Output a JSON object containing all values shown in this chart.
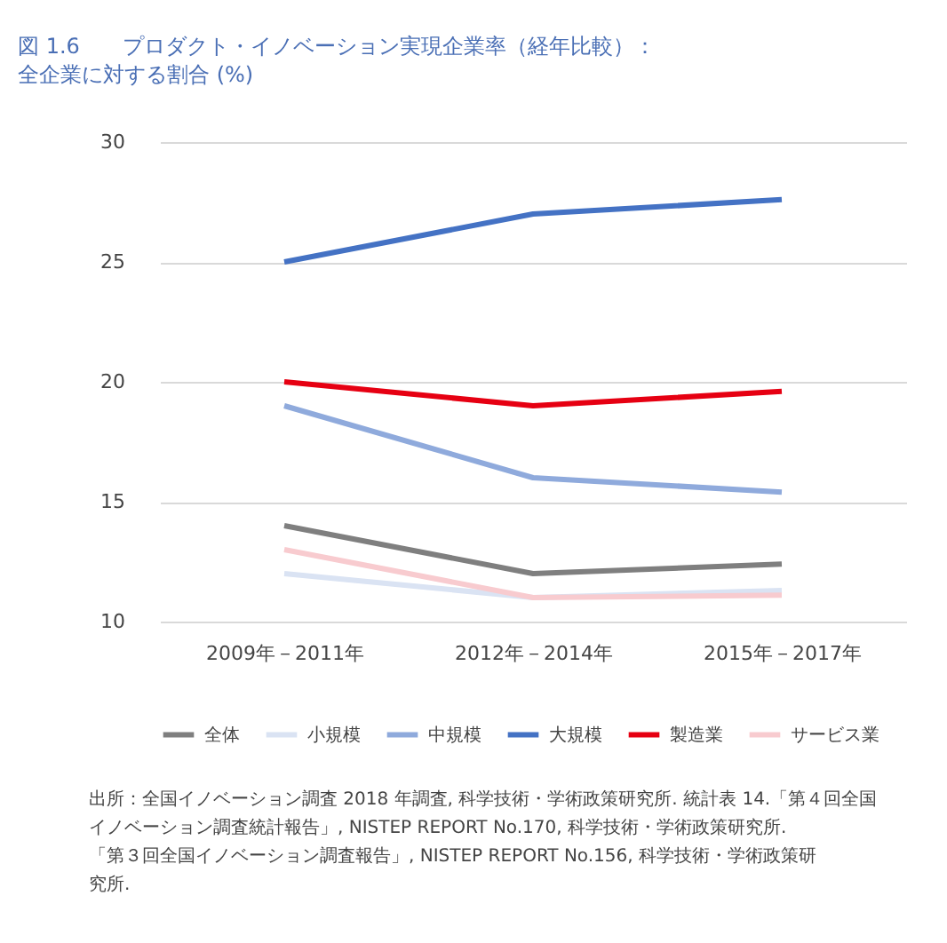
{
  "chart_data": {
    "type": "line",
    "title": "図 1.6　　プロダクト・イノベーション実現企業率（経年比較）：",
    "subtitle": "全企業に対する割合 (%)",
    "categories": [
      "2009年－2011年",
      "2012年－2014年",
      "2015年－2017年"
    ],
    "series": [
      {
        "name": "全体",
        "color": "#7f7f7f",
        "values": [
          14,
          12,
          12.4
        ]
      },
      {
        "name": "小規模",
        "color": "#dae3f3",
        "values": [
          12,
          11,
          11.3
        ]
      },
      {
        "name": "中規模",
        "color": "#8faadc",
        "values": [
          19,
          16,
          15.4
        ]
      },
      {
        "name": "大規模",
        "color": "#4472c4",
        "values": [
          25,
          27,
          27.6
        ]
      },
      {
        "name": "製造業",
        "color": "#e60012",
        "values": [
          20,
          19,
          19.6
        ]
      },
      {
        "name": "サービス業",
        "color": "#f8cbcf",
        "values": [
          13,
          11,
          11.1
        ]
      }
    ],
    "ylim": [
      10,
      30
    ],
    "yticks": [
      10,
      15,
      20,
      25,
      30
    ],
    "grid": "y",
    "legend": "bottom",
    "marker": "none",
    "line_style": "solid",
    "annotations": [
      "出所：全国イノベーション調査 2018 年調査, 科学技術・学術政策研究所. 統計表 14.「第４回全国イノベーション調査統計報告」, NISTEP REPORT No.170, 科学技術・学術政策研究所. 「第３回全国イノベーション調査報告」, NISTEP REPORT No.156, 科学技術・学術政策研究所."
    ]
  }
}
